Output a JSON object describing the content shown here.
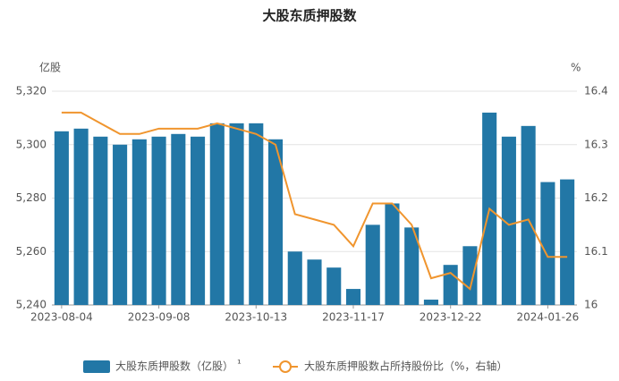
{
  "chart_data": {
    "type": "bar",
    "title": "大股东质押股数",
    "y_axis_label": "亿股",
    "y2_axis_label": "%",
    "legend_note": "¹",
    "categories": [
      "2023-08-04",
      null,
      null,
      null,
      null,
      "2023-09-08",
      null,
      null,
      null,
      null,
      "2023-10-13",
      null,
      null,
      null,
      null,
      "2023-11-17",
      null,
      null,
      null,
      null,
      "2023-12-22",
      null,
      null,
      null,
      null,
      "2024-01-26",
      null
    ],
    "series": [
      {
        "name": "大股东质押股数（亿股）",
        "type": "bar",
        "color": "#2277a6",
        "values": [
          5305,
          5306,
          5303,
          5300,
          5302,
          5303,
          5304,
          5303,
          5308,
          5308,
          5308,
          5302,
          5260,
          5257,
          5254,
          5246,
          5270,
          5278,
          5269,
          5242,
          5255,
          5262,
          5312,
          5303,
          5307,
          5286,
          5287
        ]
      },
      {
        "name": "大股东质押股数占所持股份比（%，右轴）",
        "type": "line",
        "axis": "y2",
        "color": "#f0952e",
        "values": [
          16.36,
          16.36,
          16.34,
          16.32,
          16.32,
          16.33,
          16.33,
          16.33,
          16.34,
          16.33,
          16.32,
          16.3,
          16.17,
          16.16,
          16.15,
          16.11,
          16.19,
          16.19,
          16.15,
          16.05,
          16.06,
          16.03,
          16.18,
          16.15,
          16.16,
          16.09,
          16.09
        ]
      }
    ],
    "ylim": [
      5240,
      5320
    ],
    "yticks": [
      {
        "value": 5240,
        "label": "5,240"
      },
      {
        "value": 5260,
        "label": "5,260"
      },
      {
        "value": 5280,
        "label": "5,280"
      },
      {
        "value": 5300,
        "label": "5,300"
      },
      {
        "value": 5320,
        "label": "5,320"
      }
    ],
    "y2lim": [
      16,
      16.4
    ],
    "y2ticks": [
      16,
      16.1,
      16.2,
      16.3,
      16.4
    ],
    "grid": true,
    "legend": "bottom"
  }
}
